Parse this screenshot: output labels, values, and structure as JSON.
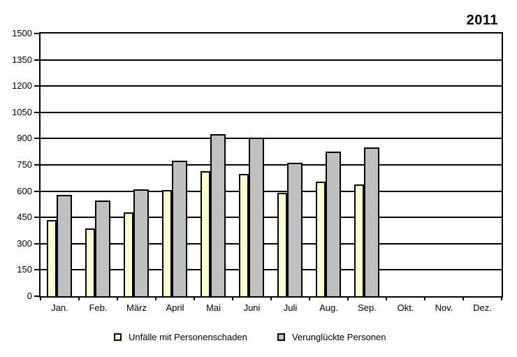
{
  "title": "2011",
  "chart_data": {
    "type": "bar",
    "title": "2011",
    "categories": [
      "Jan.",
      "Feb.",
      "März",
      "April",
      "Mai",
      "Juni",
      "Juli",
      "Aug.",
      "Sep.",
      "Okt.",
      "Nov.",
      "Dez."
    ],
    "series": [
      {
        "name": "Unfälle mit Personenschaden",
        "color": "#FFFFCC",
        "values": [
          435,
          385,
          480,
          605,
          715,
          700,
          590,
          655,
          640,
          null,
          null,
          null
        ]
      },
      {
        "name": "Verunglückte Personen",
        "color": "#C0C0C0",
        "values": [
          580,
          545,
          610,
          775,
          925,
          905,
          760,
          825,
          850,
          null,
          null,
          null
        ]
      }
    ],
    "xlabel": "",
    "ylabel": "",
    "ylim": [
      0,
      1500
    ],
    "yticks": [
      0,
      150,
      300,
      450,
      600,
      750,
      900,
      1050,
      1200,
      1350,
      1500
    ],
    "grid": true,
    "legend_position": "bottom"
  },
  "legend": {
    "items": [
      {
        "label": "Unfälle mit Personenschaden",
        "color": "#FFFFCC"
      },
      {
        "label": "Verunglückte Personen",
        "color": "#C0C0C0"
      }
    ]
  },
  "colors": {
    "series_accidents": "#FFFFCC",
    "series_casualties": "#C0C0C0",
    "grid": "#000000",
    "background": "#FFFFFF"
  }
}
